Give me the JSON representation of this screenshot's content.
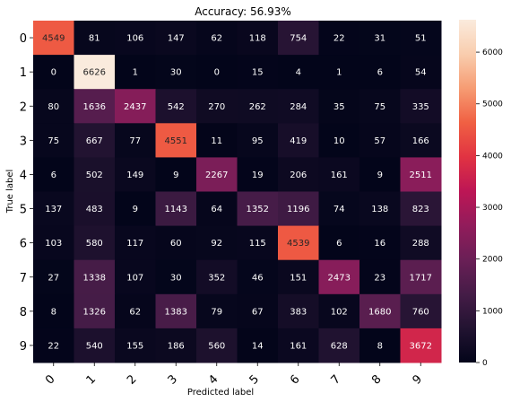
{
  "chart_data": {
    "type": "heatmap",
    "title": "Accuracy: 56.93%",
    "xlabel": "Predicted label",
    "ylabel": "True label",
    "x_ticks": [
      "0",
      "1",
      "2",
      "3",
      "4",
      "5",
      "6",
      "7",
      "8",
      "9"
    ],
    "y_ticks": [
      "0",
      "1",
      "2",
      "3",
      "4",
      "5",
      "6",
      "7",
      "8",
      "9"
    ],
    "matrix": [
      [
        4549,
        81,
        106,
        147,
        62,
        118,
        754,
        22,
        31,
        51
      ],
      [
        0,
        6626,
        1,
        30,
        0,
        15,
        4,
        1,
        6,
        54
      ],
      [
        80,
        1636,
        2437,
        542,
        270,
        262,
        284,
        35,
        75,
        335
      ],
      [
        75,
        667,
        77,
        4551,
        11,
        95,
        419,
        10,
        57,
        166
      ],
      [
        6,
        502,
        149,
        9,
        2267,
        19,
        206,
        161,
        9,
        2511
      ],
      [
        137,
        483,
        9,
        1143,
        64,
        1352,
        1196,
        74,
        138,
        823
      ],
      [
        103,
        580,
        117,
        60,
        92,
        115,
        4539,
        6,
        16,
        288
      ],
      [
        27,
        1338,
        107,
        30,
        352,
        46,
        151,
        2473,
        23,
        1717
      ],
      [
        8,
        1326,
        62,
        1383,
        79,
        67,
        383,
        102,
        1680,
        760
      ],
      [
        22,
        540,
        155,
        186,
        560,
        14,
        161,
        628,
        8,
        3672
      ]
    ],
    "colormap": "rocket",
    "colorbar": {
      "range": [
        0,
        6626
      ],
      "ticks": [
        "0",
        "1000",
        "2000",
        "3000",
        "4000",
        "5000",
        "6000"
      ],
      "tick_values": [
        0,
        1000,
        2000,
        3000,
        4000,
        5000,
        6000
      ]
    },
    "grid": false,
    "legend": "colorbar-right"
  }
}
